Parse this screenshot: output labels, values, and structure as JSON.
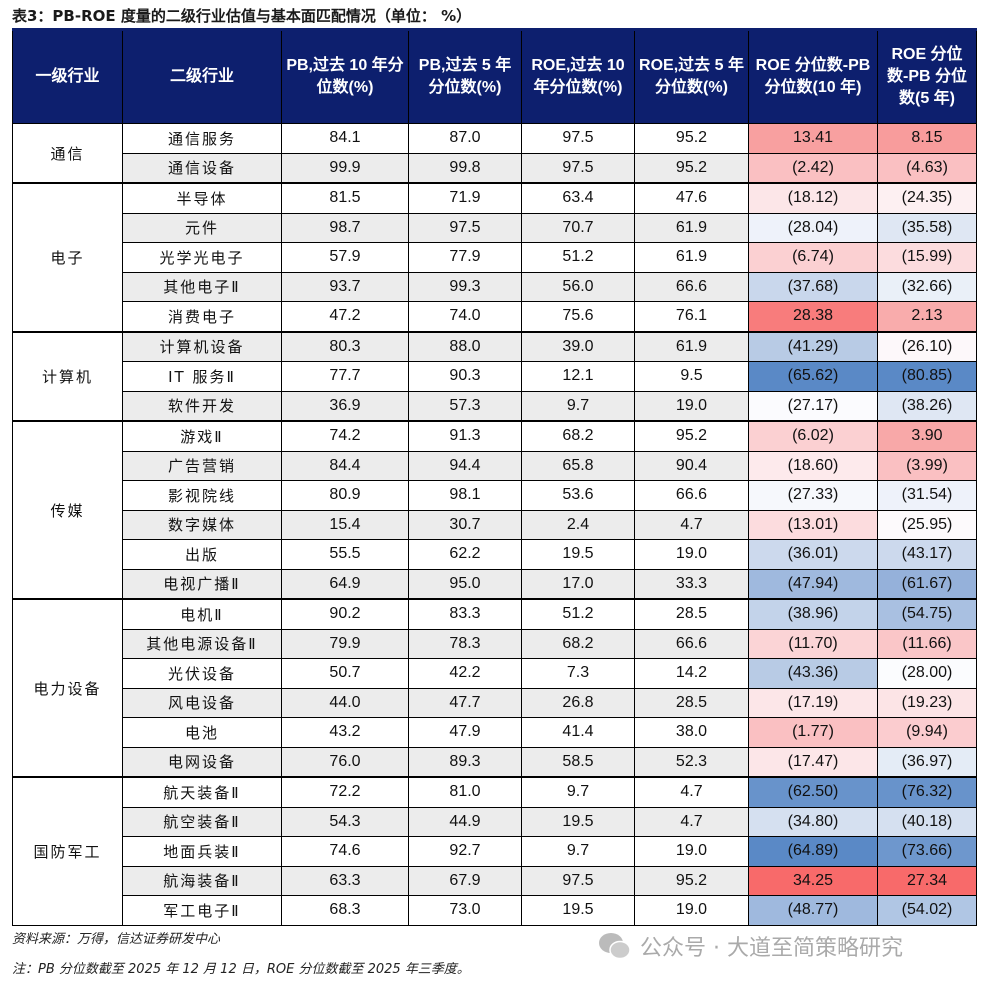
{
  "title": "表3：PB-ROE 度量的二级行业估值与基本面匹配情况（单位： %）",
  "headers": [
    "一级行业",
    "二级行业",
    "PB,过去 10 年分位数(%)",
    "PB,过去 5 年分位数(%)",
    "ROE,过去 10 年分位数(%)",
    "ROE,过去 5 年分位数(%)",
    "ROE 分位数-PB 分位数(10 年)",
    "ROE 分位数-PB 分位数(5 年)"
  ],
  "groups": [
    {
      "name": "通信",
      "rows": [
        {
          "sub": "通信服务",
          "v": [
            "84.1",
            "87.0",
            "97.5",
            "95.2",
            "13.41",
            "8.15"
          ],
          "c": [
            "#f8a0a0",
            "#f89c9c"
          ]
        },
        {
          "sub": "通信设备",
          "v": [
            "99.9",
            "99.8",
            "97.5",
            "95.2",
            "(2.42)",
            "(4.63)"
          ],
          "c": [
            "#fac0c2",
            "#fac0c2"
          ]
        }
      ]
    },
    {
      "name": "电子",
      "rows": [
        {
          "sub": "半导体",
          "v": [
            "81.5",
            "71.9",
            "63.4",
            "47.6",
            "(18.12)",
            "(24.35)"
          ],
          "c": [
            "#fce6e8",
            "#fdf0f2"
          ]
        },
        {
          "sub": "元件",
          "v": [
            "98.7",
            "97.5",
            "70.7",
            "61.9",
            "(28.04)",
            "(35.58)"
          ],
          "c": [
            "#eef2fa",
            "#dfe7f3"
          ]
        },
        {
          "sub": "光学光电子",
          "v": [
            "57.9",
            "77.9",
            "51.2",
            "61.9",
            "(6.74)",
            "(15.99)"
          ],
          "c": [
            "#fbd0d2",
            "#fcdcde"
          ]
        },
        {
          "sub": "其他电子Ⅱ",
          "v": [
            "93.7",
            "99.3",
            "56.0",
            "66.6",
            "(37.68)",
            "(32.66)"
          ],
          "c": [
            "#c9d7ec",
            "#eaf0f8"
          ]
        },
        {
          "sub": "消费电子",
          "v": [
            "47.2",
            "74.0",
            "75.6",
            "76.1",
            "28.38",
            "2.13"
          ],
          "c": [
            "#f87c7c",
            "#f9acac"
          ]
        }
      ]
    },
    {
      "name": "计算机",
      "rows": [
        {
          "sub": "计算机设备",
          "v": [
            "80.3",
            "88.0",
            "39.0",
            "61.9",
            "(41.29)",
            "(26.10)"
          ],
          "c": [
            "#b8cbe5",
            "#fdf8fa"
          ]
        },
        {
          "sub": "IT 服务Ⅱ",
          "v": [
            "77.7",
            "90.3",
            "12.1",
            "9.5",
            "(65.62)",
            "(80.85)"
          ],
          "c": [
            "#5a89c6",
            "#5a89c6"
          ]
        },
        {
          "sub": "软件开发",
          "v": [
            "36.9",
            "57.3",
            "9.7",
            "19.0",
            "(27.17)",
            "(38.26)"
          ],
          "c": [
            "#fbfbfe",
            "#dfe7f3"
          ]
        }
      ]
    },
    {
      "name": "传媒",
      "rows": [
        {
          "sub": "游戏Ⅱ",
          "v": [
            "74.2",
            "91.3",
            "68.2",
            "95.2",
            "(6.02)",
            "3.90"
          ],
          "c": [
            "#fbd0d2",
            "#f8a8a8"
          ]
        },
        {
          "sub": "广告营销",
          "v": [
            "84.4",
            "94.4",
            "65.8",
            "90.4",
            "(18.60)",
            "(3.99)"
          ],
          "c": [
            "#fdeaec",
            "#fac0c2"
          ]
        },
        {
          "sub": "影视院线",
          "v": [
            "80.9",
            "98.1",
            "53.6",
            "66.6",
            "(27.33)",
            "(31.54)"
          ],
          "c": [
            "#f6f8fc",
            "#eef2fa"
          ]
        },
        {
          "sub": "数字媒体",
          "v": [
            "15.4",
            "30.7",
            "2.4",
            "4.7",
            "(13.01)",
            "(25.95)"
          ],
          "c": [
            "#fcdcde",
            "#fdfafc"
          ]
        },
        {
          "sub": "出版",
          "v": [
            "55.5",
            "62.2",
            "19.5",
            "19.0",
            "(36.01)",
            "(43.17)"
          ],
          "c": [
            "#ccd9ed",
            "#ccd9ed"
          ]
        },
        {
          "sub": "电视广播Ⅱ",
          "v": [
            "64.9",
            "95.0",
            "17.0",
            "33.3",
            "(47.94)",
            "(61.67)"
          ],
          "c": [
            "#9fb9de",
            "#95b1da"
          ]
        }
      ]
    },
    {
      "name": "电力设备",
      "rows": [
        {
          "sub": "电机Ⅱ",
          "v": [
            "90.2",
            "83.3",
            "51.2",
            "28.5",
            "(38.96)",
            "(54.75)"
          ],
          "c": [
            "#c3d3ea",
            "#a9c0e1"
          ]
        },
        {
          "sub": "其他电源设备Ⅱ",
          "v": [
            "79.9",
            "78.3",
            "68.2",
            "66.6",
            "(11.70)",
            "(11.66)"
          ],
          "c": [
            "#fbd4d6",
            "#fac6c8"
          ]
        },
        {
          "sub": "光伏设备",
          "v": [
            "50.7",
            "42.2",
            "7.3",
            "14.2",
            "(43.36)",
            "(28.00)"
          ],
          "c": [
            "#b8cbe5",
            "#fbfcfe"
          ]
        },
        {
          "sub": "风电设备",
          "v": [
            "44.0",
            "47.7",
            "26.8",
            "28.5",
            "(17.19)",
            "(19.23)"
          ],
          "c": [
            "#fce6e8",
            "#fce4e6"
          ]
        },
        {
          "sub": "电池",
          "v": [
            "43.2",
            "47.9",
            "41.4",
            "38.0",
            "(1.77)",
            "(9.94)"
          ],
          "c": [
            "#fac0c2",
            "#fbcccf"
          ]
        },
        {
          "sub": "电网设备",
          "v": [
            "76.0",
            "89.3",
            "58.5",
            "52.3",
            "(17.47)",
            "(36.97)"
          ],
          "c": [
            "#fce6e8",
            "#e4ecf6"
          ]
        }
      ]
    },
    {
      "name": "国防军工",
      "rows": [
        {
          "sub": "航天装备Ⅱ",
          "v": [
            "72.2",
            "81.0",
            "9.7",
            "4.7",
            "(62.50)",
            "(76.32)"
          ],
          "c": [
            "#6893cb",
            "#6893cb"
          ]
        },
        {
          "sub": "航空装备Ⅱ",
          "v": [
            "54.3",
            "44.9",
            "19.5",
            "4.7",
            "(34.80)",
            "(40.18)"
          ],
          "c": [
            "#d5e0f0",
            "#d5e0f0"
          ]
        },
        {
          "sub": "地面兵装Ⅱ",
          "v": [
            "74.6",
            "92.7",
            "9.7",
            "19.0",
            "(64.89)",
            "(73.66)"
          ],
          "c": [
            "#5a89c6",
            "#6e97cd"
          ]
        },
        {
          "sub": "航海装备Ⅱ",
          "v": [
            "63.3",
            "67.9",
            "97.5",
            "95.2",
            "34.25",
            "27.34"
          ],
          "c": [
            "#f86a6a",
            "#f86a6a"
          ]
        },
        {
          "sub": "军工电子Ⅱ",
          "v": [
            "68.3",
            "73.0",
            "19.5",
            "19.0",
            "(48.77)",
            "(54.02)"
          ],
          "c": [
            "#9fb9de",
            "#b0c6e4"
          ]
        }
      ]
    }
  ],
  "source": "资料来源：万得，信达证券研发中心",
  "note": "注：PB 分位数截至 2025 年 12 月 12 日，ROE 分位数截至 2025 年三季度。",
  "watermark": "公众号 · 大道至简策略研究"
}
